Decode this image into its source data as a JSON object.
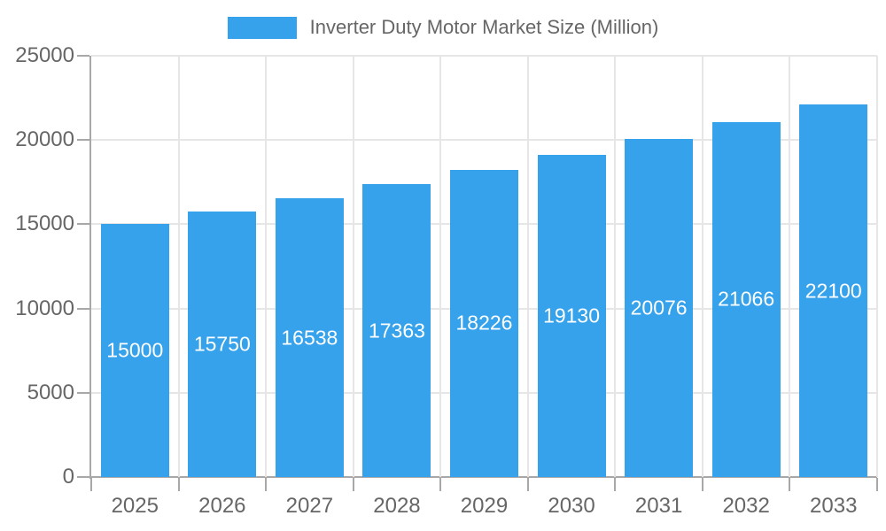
{
  "legend": {
    "swatch_color": "#36A2EB"
  },
  "chart_data": {
    "type": "bar",
    "title": "Inverter Duty Motor Market Size (Million)",
    "categories": [
      "2025",
      "2026",
      "2027",
      "2028",
      "2029",
      "2030",
      "2031",
      "2032",
      "2033"
    ],
    "values": [
      15000,
      15750,
      16538,
      17363,
      18226,
      19130,
      20076,
      21066,
      22100
    ],
    "value_labels": [
      "15000",
      "15750",
      "16538",
      "17363",
      "18226",
      "19130",
      "20076",
      "21066",
      "22100"
    ],
    "xlabel": "",
    "ylabel": "",
    "ylim": [
      0,
      25000
    ],
    "yticks": [
      0,
      5000,
      10000,
      15000,
      20000,
      25000
    ],
    "grid": true,
    "legend_position": "top-center",
    "bar_color": "#36A2EB",
    "bar_label_color": "#ffffff",
    "axis_text_color": "#666666",
    "gridline_color": "#e6e6e6",
    "axis_line_color": "#a8a8a8"
  }
}
